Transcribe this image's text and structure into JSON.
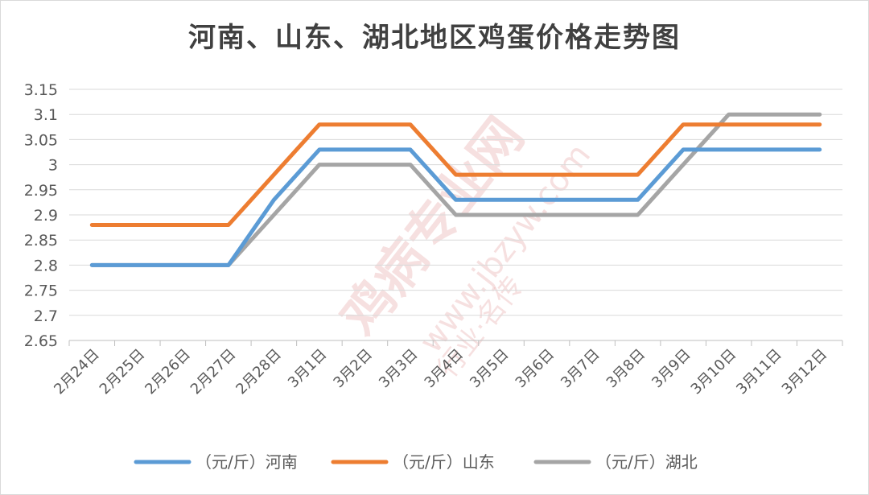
{
  "chart_data": {
    "type": "line",
    "title": "河南、山东、湖北地区鸡蛋价格走势图",
    "xlabel": "",
    "ylabel": "",
    "ylim": [
      2.65,
      3.15
    ],
    "yticks": [
      2.65,
      2.7,
      2.75,
      2.8,
      2.85,
      2.9,
      2.95,
      3,
      3.05,
      3.1,
      3.15
    ],
    "ytick_labels": [
      "2.65",
      "2.7",
      "2.75",
      "2.8",
      "2.85",
      "2.9",
      "2.95",
      "3",
      "3.05",
      "3.1",
      "3.15"
    ],
    "categories": [
      "2月24日",
      "2月25日",
      "2月26日",
      "2月27日",
      "2月28日",
      "3月1日",
      "3月2日",
      "3月3日",
      "3月4日",
      "3月5日",
      "3月6日",
      "3月7日",
      "3月8日",
      "3月9日",
      "3月10日",
      "3月11日",
      "3月12日"
    ],
    "grid": true,
    "legend_position": "bottom",
    "series": [
      {
        "name": "（元/斤）河南",
        "color": "#5b9bd5",
        "values": [
          2.8,
          2.8,
          2.8,
          2.8,
          2.93,
          3.03,
          3.03,
          3.03,
          2.93,
          2.93,
          2.93,
          2.93,
          2.93,
          3.03,
          3.03,
          3.03,
          3.03
        ]
      },
      {
        "name": "（元/斤）山东",
        "color": "#ed7d31",
        "values": [
          2.88,
          2.88,
          2.88,
          2.88,
          2.98,
          3.08,
          3.08,
          3.08,
          2.98,
          2.98,
          2.98,
          2.98,
          2.98,
          3.08,
          3.08,
          3.08,
          3.08
        ]
      },
      {
        "name": "（元/斤）湖北",
        "color": "#a5a5a5",
        "values": [
          2.8,
          2.8,
          2.8,
          2.8,
          2.9,
          3,
          3,
          3,
          2.9,
          2.9,
          2.9,
          2.9,
          2.9,
          3,
          3.1,
          3.1,
          3.1
        ]
      }
    ]
  },
  "watermark": {
    "brand": "鸡病专业网",
    "url": "www.jbzyw.com",
    "slogan": "行业·名传"
  }
}
